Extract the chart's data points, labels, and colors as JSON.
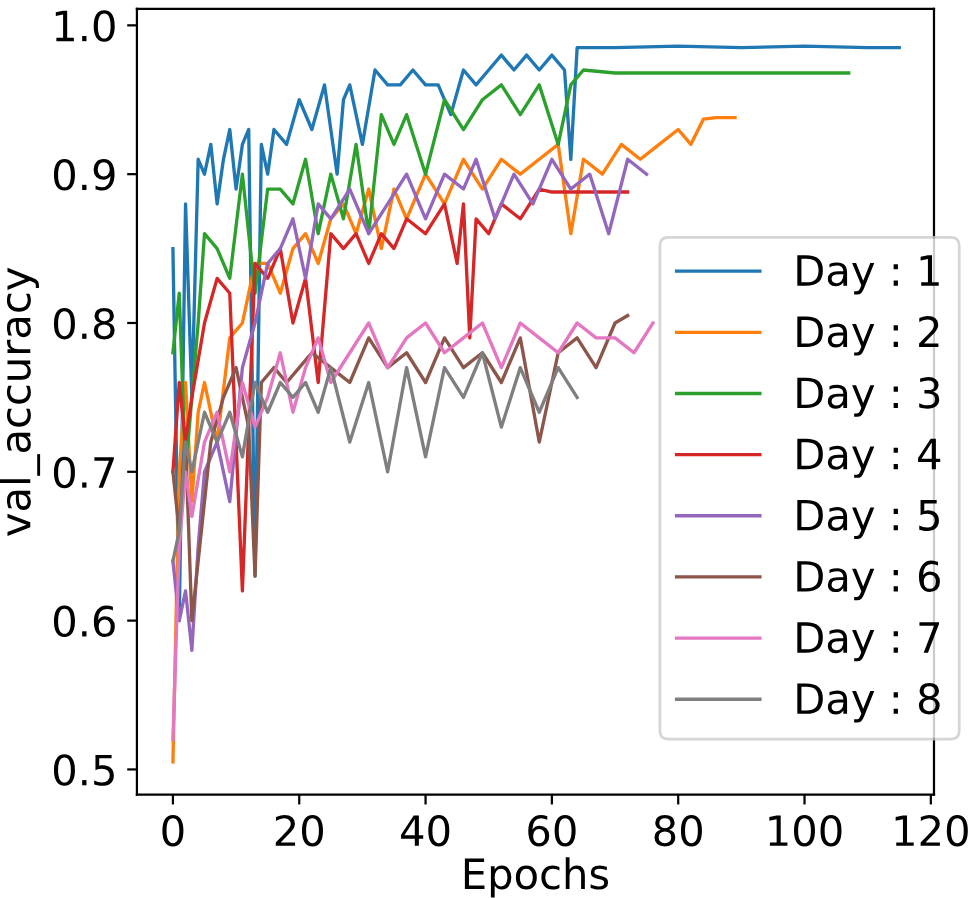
{
  "chart_data": {
    "type": "line",
    "xlabel": "Epochs",
    "ylabel": "val_accuracy",
    "xlim": [
      -5.7,
      120.5
    ],
    "ylim": [
      0.483,
      1.011
    ],
    "xticks": [
      0,
      20,
      40,
      60,
      80,
      100,
      120
    ],
    "yticks": [
      0.5,
      0.6,
      0.7,
      0.8,
      0.9,
      {
        "value": 1.0,
        "label": "1.0"
      }
    ],
    "grid": false,
    "legend": "right",
    "marker": "none",
    "line_style": "solid",
    "series": [
      {
        "name": "Day : 1",
        "color": "#1f77b4",
        "x": [
          0,
          1,
          2,
          3,
          4,
          5,
          6,
          7,
          8,
          9,
          10,
          11,
          12,
          13,
          14,
          15,
          16,
          18,
          20,
          22,
          24,
          26,
          27,
          28,
          30,
          32,
          34,
          36,
          38,
          40,
          42,
          44,
          46,
          48,
          50,
          52,
          54,
          56,
          58,
          60,
          62,
          63,
          64,
          70,
          80,
          90,
          100,
          110,
          115
        ],
        "values": [
          0.85,
          0.6,
          0.88,
          0.75,
          0.91,
          0.9,
          0.92,
          0.88,
          0.91,
          0.93,
          0.89,
          0.92,
          0.93,
          0.63,
          0.92,
          0.9,
          0.93,
          0.92,
          0.95,
          0.93,
          0.96,
          0.9,
          0.95,
          0.96,
          0.92,
          0.97,
          0.96,
          0.96,
          0.97,
          0.96,
          0.96,
          0.94,
          0.97,
          0.96,
          0.97,
          0.98,
          0.97,
          0.98,
          0.97,
          0.98,
          0.97,
          0.91,
          0.985,
          0.985,
          0.986,
          0.985,
          0.986,
          0.985,
          0.985
        ]
      },
      {
        "name": "Day : 2",
        "color": "#ff7f0e",
        "x": [
          0,
          1,
          2,
          3,
          4,
          5,
          7,
          9,
          11,
          13,
          15,
          17,
          19,
          21,
          23,
          25,
          27,
          29,
          31,
          33,
          35,
          37,
          40,
          43,
          46,
          49,
          52,
          55,
          58,
          61,
          63,
          65,
          68,
          71,
          74,
          77,
          80,
          82,
          84,
          86,
          89
        ],
        "values": [
          0.505,
          0.7,
          0.76,
          0.68,
          0.74,
          0.76,
          0.72,
          0.79,
          0.8,
          0.84,
          0.84,
          0.82,
          0.85,
          0.86,
          0.84,
          0.87,
          0.88,
          0.86,
          0.89,
          0.85,
          0.89,
          0.87,
          0.9,
          0.88,
          0.91,
          0.89,
          0.91,
          0.9,
          0.91,
          0.92,
          0.86,
          0.91,
          0.9,
          0.92,
          0.91,
          0.92,
          0.93,
          0.92,
          0.937,
          0.938,
          0.938
        ]
      },
      {
        "name": "Day : 3",
        "color": "#2ca02c",
        "x": [
          0,
          1,
          2,
          3,
          4,
          5,
          7,
          9,
          11,
          13,
          15,
          17,
          19,
          21,
          23,
          25,
          27,
          29,
          31,
          33,
          35,
          37,
          40,
          43,
          46,
          49,
          52,
          55,
          58,
          61,
          63,
          65,
          70,
          80,
          90,
          100,
          107
        ],
        "values": [
          0.78,
          0.82,
          0.7,
          0.75,
          0.8,
          0.86,
          0.85,
          0.83,
          0.9,
          0.82,
          0.89,
          0.89,
          0.88,
          0.91,
          0.86,
          0.9,
          0.87,
          0.92,
          0.86,
          0.94,
          0.92,
          0.94,
          0.9,
          0.95,
          0.93,
          0.95,
          0.96,
          0.94,
          0.96,
          0.92,
          0.96,
          0.97,
          0.968,
          0.968,
          0.968,
          0.968,
          0.968
        ]
      },
      {
        "name": "Day : 4",
        "color": "#d62728",
        "x": [
          0,
          1,
          2,
          3,
          5,
          7,
          9,
          11,
          13,
          15,
          17,
          19,
          21,
          23,
          25,
          27,
          29,
          31,
          33,
          35,
          37,
          40,
          43,
          45,
          46,
          47,
          48,
          50,
          52,
          55,
          58,
          60,
          65,
          72
        ],
        "values": [
          0.7,
          0.76,
          0.72,
          0.75,
          0.8,
          0.83,
          0.82,
          0.62,
          0.84,
          0.83,
          0.85,
          0.8,
          0.83,
          0.76,
          0.86,
          0.85,
          0.86,
          0.84,
          0.86,
          0.85,
          0.87,
          0.86,
          0.88,
          0.84,
          0.88,
          0.79,
          0.87,
          0.86,
          0.88,
          0.87,
          0.89,
          0.888,
          0.888,
          0.888
        ]
      },
      {
        "name": "Day : 5",
        "color": "#9467bd",
        "x": [
          0,
          1,
          2,
          3,
          4,
          5,
          7,
          9,
          11,
          13,
          15,
          17,
          19,
          21,
          23,
          25,
          28,
          31,
          34,
          37,
          40,
          43,
          46,
          48,
          51,
          54,
          57,
          60,
          63,
          66,
          69,
          72,
          75
        ],
        "values": [
          0.64,
          0.6,
          0.62,
          0.58,
          0.65,
          0.7,
          0.72,
          0.68,
          0.77,
          0.8,
          0.84,
          0.85,
          0.87,
          0.83,
          0.88,
          0.87,
          0.89,
          0.86,
          0.88,
          0.9,
          0.87,
          0.9,
          0.89,
          0.91,
          0.87,
          0.9,
          0.88,
          0.91,
          0.89,
          0.9,
          0.86,
          0.91,
          0.9
        ]
      },
      {
        "name": "Day : 6",
        "color": "#8c564b",
        "x": [
          0,
          1,
          2,
          3,
          4,
          5,
          6,
          8,
          10,
          12,
          13,
          14,
          16,
          18,
          20,
          22,
          25,
          28,
          31,
          34,
          37,
          40,
          43,
          46,
          49,
          52,
          55,
          58,
          61,
          64,
          67,
          70,
          72
        ],
        "values": [
          0.7,
          0.66,
          0.72,
          0.6,
          0.64,
          0.68,
          0.72,
          0.75,
          0.77,
          0.73,
          0.63,
          0.76,
          0.77,
          0.76,
          0.77,
          0.78,
          0.77,
          0.76,
          0.79,
          0.77,
          0.78,
          0.76,
          0.79,
          0.77,
          0.78,
          0.76,
          0.79,
          0.72,
          0.78,
          0.79,
          0.77,
          0.8,
          0.805
        ]
      },
      {
        "name": "Day : 7",
        "color": "#e377c2",
        "x": [
          0,
          1,
          2,
          3,
          5,
          7,
          9,
          11,
          13,
          15,
          17,
          19,
          21,
          23,
          25,
          28,
          31,
          34,
          37,
          40,
          43,
          46,
          49,
          52,
          55,
          58,
          61,
          64,
          67,
          70,
          73,
          76
        ],
        "values": [
          0.52,
          0.65,
          0.7,
          0.67,
          0.72,
          0.74,
          0.7,
          0.76,
          0.73,
          0.75,
          0.78,
          0.74,
          0.77,
          0.79,
          0.76,
          0.78,
          0.8,
          0.77,
          0.79,
          0.8,
          0.78,
          0.79,
          0.8,
          0.77,
          0.8,
          0.79,
          0.78,
          0.8,
          0.79,
          0.79,
          0.78,
          0.8
        ]
      },
      {
        "name": "Day : 8",
        "color": "#7f7f7f",
        "x": [
          0,
          1,
          2,
          3,
          5,
          7,
          9,
          11,
          13,
          15,
          17,
          19,
          21,
          23,
          25,
          28,
          31,
          34,
          37,
          40,
          43,
          46,
          49,
          52,
          55,
          58,
          61,
          64
        ],
        "values": [
          0.64,
          0.66,
          0.72,
          0.7,
          0.74,
          0.72,
          0.74,
          0.71,
          0.76,
          0.74,
          0.76,
          0.75,
          0.76,
          0.74,
          0.77,
          0.72,
          0.76,
          0.7,
          0.77,
          0.71,
          0.77,
          0.75,
          0.78,
          0.73,
          0.77,
          0.74,
          0.77,
          0.75
        ]
      }
    ]
  }
}
